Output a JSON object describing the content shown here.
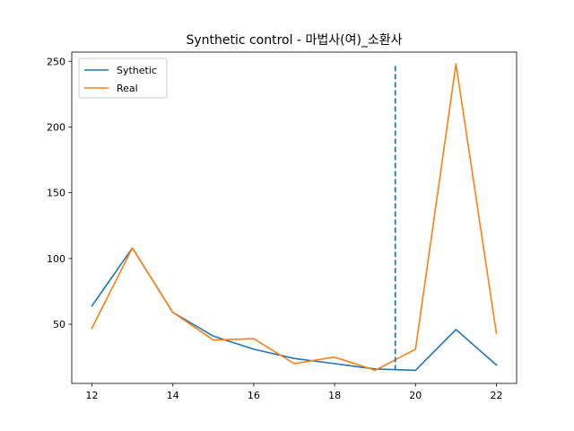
{
  "chart_data": {
    "type": "line",
    "title": "Synthetic control - 마법사(여)_소환사",
    "xlabel": "",
    "ylabel": "",
    "x": [
      12,
      13,
      14,
      15,
      16,
      17,
      18,
      19,
      20,
      21,
      22
    ],
    "xlim": [
      11.5,
      22.5
    ],
    "ylim": [
      5,
      257
    ],
    "xticks": [
      "12",
      "14",
      "16",
      "18",
      "20",
      "22"
    ],
    "yticks": [
      "50",
      "100",
      "150",
      "200",
      "250"
    ],
    "grid": false,
    "legend_position": "top-left",
    "series": [
      {
        "name": "Sythetic",
        "color": "#1f77b4",
        "values": [
          64,
          108,
          59,
          41,
          31,
          24,
          20,
          16,
          15,
          46,
          19
        ]
      },
      {
        "name": "Real",
        "color": "#ff7f0e",
        "values": [
          47,
          108,
          59,
          38,
          39,
          20,
          25,
          15,
          31,
          248,
          43
        ]
      }
    ],
    "vline": {
      "x": 19.5,
      "y_range": [
        15,
        248
      ],
      "color": "#1f77b4",
      "style": "dashed"
    }
  }
}
